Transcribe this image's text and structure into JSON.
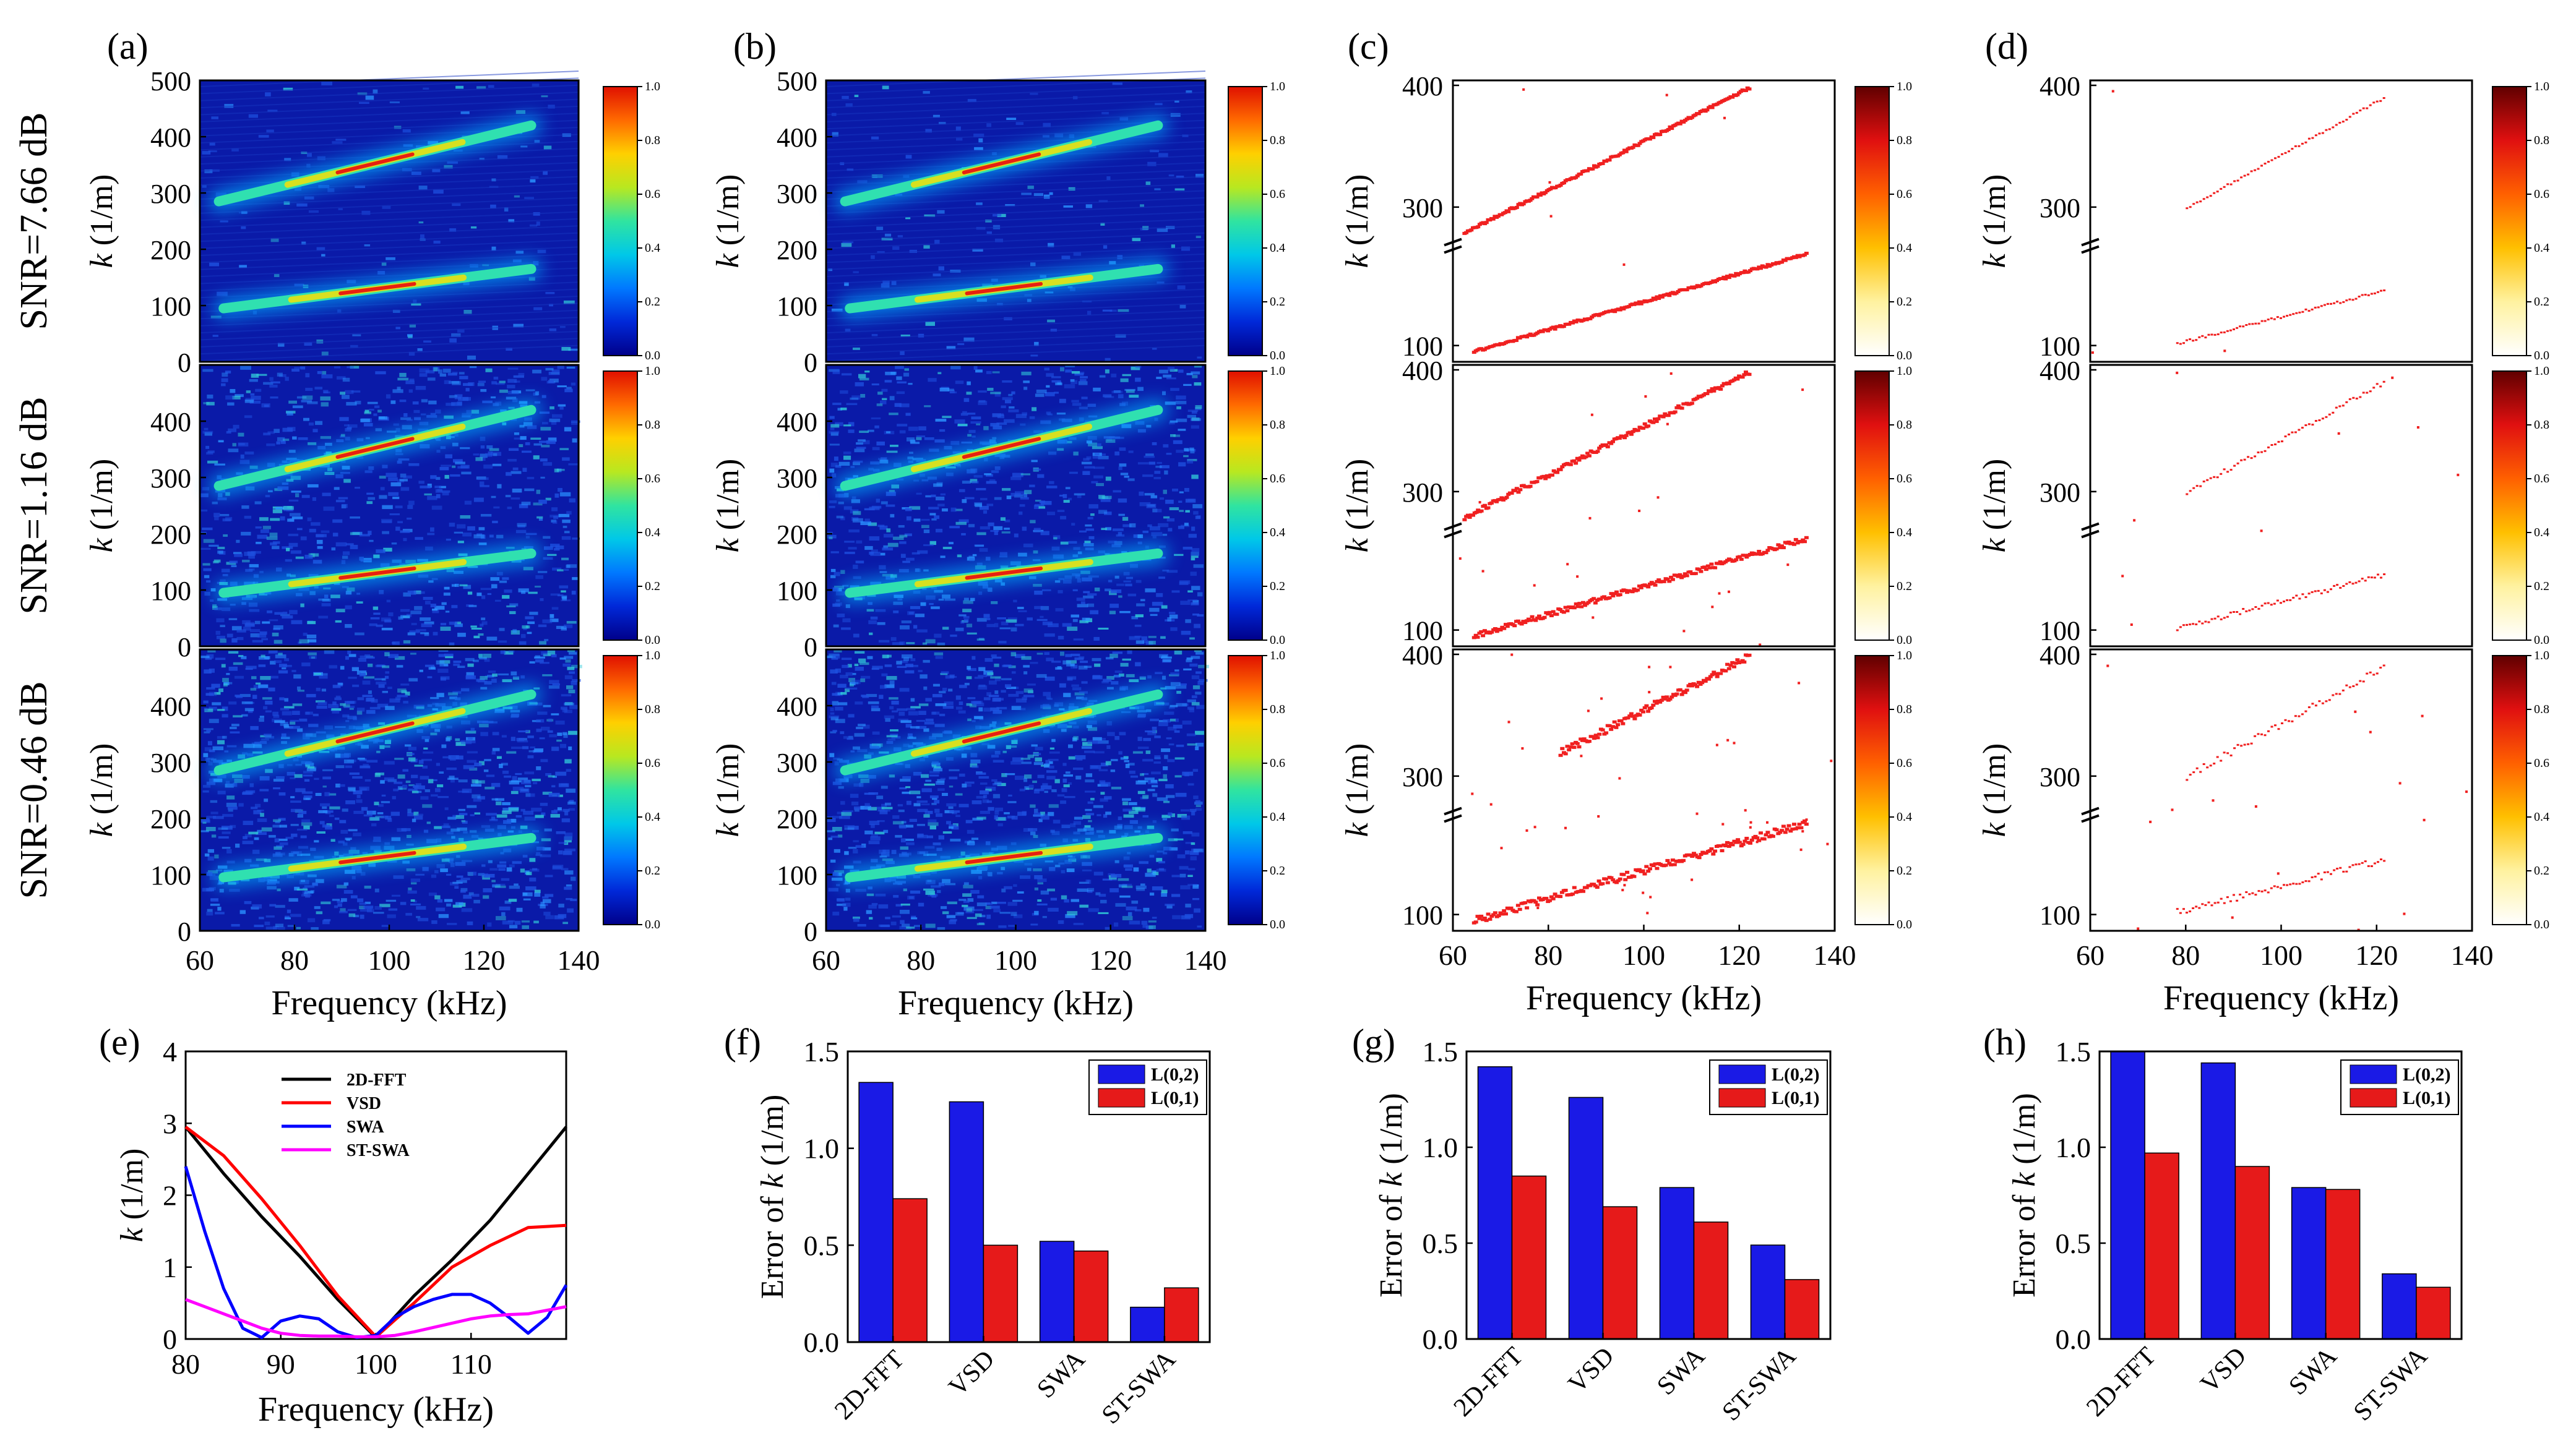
{
  "figure": {
    "colors": {
      "heat": [
        "#00008a",
        "#0028d8",
        "#0078ff",
        "#00c8e8",
        "#30e4a0",
        "#b8e820",
        "#ffd000",
        "#ff6a00",
        "#e01000"
      ],
      "sparse": [
        "#ffffff",
        "#fff2a0",
        "#ffc000",
        "#ff6000",
        "#e01010",
        "#600000"
      ],
      "ridge": "#f02020",
      "blue_bar": "#1a1ae6",
      "red_bar": "#e61a1a"
    }
  },
  "chart_data": [
    {
      "id": "maps",
      "type": "heatmap",
      "panels": [
        "(a)",
        "(b)",
        "(c)",
        "(d)"
      ],
      "row_labels": [
        "SNR=7.66 dB",
        "SNR=1.16 dB",
        "SNR=0.46 dB"
      ],
      "xlabel": "Frequency (kHz)",
      "xlim": [
        60,
        140
      ],
      "xticks": [
        "60",
        "80",
        "100",
        "120",
        "140"
      ],
      "ylabel_prefix": "k",
      "ylabel_suffix": " (1/m)",
      "dense_ylim": [
        0,
        500
      ],
      "dense_yticks_top": [
        "0",
        "100",
        "200",
        "300",
        "400",
        "500"
      ],
      "dense_yticks": [
        "0",
        "100",
        "200",
        "300",
        "400"
      ],
      "broken_yticks": [
        "100",
        "300",
        "400"
      ],
      "broken_ylim_low": [
        80,
        270
      ],
      "broken_ylim_high": [
        270,
        400
      ],
      "colorbar_ticks": [
        "0.0",
        "0.2",
        "0.4",
        "0.6",
        "0.8",
        "1.0"
      ],
      "modes": [
        {
          "name": "L(0,2)",
          "x": [
            64,
            130
          ],
          "y": [
            285,
            420
          ]
        },
        {
          "name": "L(0,1)",
          "x": [
            65,
            130
          ],
          "y": [
            95,
            165
          ]
        }
      ]
    },
    {
      "id": "e",
      "type": "line",
      "panel": "(e)",
      "xlabel": "Frequency (kHz)",
      "ylabel_prefix": "k",
      "ylabel_suffix": " (1/m)",
      "xlim": [
        80,
        120
      ],
      "ylim": [
        0,
        4
      ],
      "xticks": [
        "80",
        "90",
        "100",
        "110"
      ],
      "yticks": [
        "0",
        "1",
        "2",
        "3",
        "4"
      ],
      "series": [
        {
          "name": "2D-FFT",
          "color": "#000000",
          "x": [
            80,
            84,
            88,
            92,
            96,
            100,
            104,
            108,
            112,
            116,
            120
          ],
          "y": [
            2.95,
            2.3,
            1.7,
            1.15,
            0.55,
            0.02,
            0.6,
            1.1,
            1.65,
            2.3,
            2.95
          ]
        },
        {
          "name": "VSD",
          "color": "#ff0000",
          "x": [
            80,
            84,
            88,
            92,
            96,
            100,
            104,
            108,
            112,
            116,
            120
          ],
          "y": [
            2.95,
            2.55,
            1.95,
            1.3,
            0.6,
            0.03,
            0.5,
            1.0,
            1.3,
            1.55,
            1.58
          ]
        },
        {
          "name": "SWA",
          "color": "#0000ff",
          "x": [
            80,
            82,
            84,
            86,
            88,
            90,
            92,
            94,
            96,
            98,
            100,
            102,
            104,
            106,
            108,
            110,
            112,
            114,
            116,
            118,
            120
          ],
          "y": [
            2.4,
            1.5,
            0.7,
            0.15,
            0.02,
            0.25,
            0.32,
            0.28,
            0.1,
            0.02,
            0.05,
            0.3,
            0.45,
            0.55,
            0.62,
            0.62,
            0.5,
            0.3,
            0.08,
            0.3,
            0.75
          ]
        },
        {
          "name": "ST-SWA",
          "color": "#ff00ff",
          "x": [
            80,
            82,
            84,
            86,
            88,
            90,
            92,
            94,
            96,
            98,
            100,
            102,
            104,
            106,
            108,
            110,
            112,
            114,
            116,
            118,
            120
          ],
          "y": [
            0.55,
            0.45,
            0.35,
            0.25,
            0.15,
            0.08,
            0.05,
            0.04,
            0.04,
            0.03,
            0.03,
            0.05,
            0.1,
            0.16,
            0.22,
            0.28,
            0.32,
            0.34,
            0.35,
            0.4,
            0.45
          ]
        }
      ]
    },
    {
      "id": "f",
      "type": "bar",
      "panel": "(f)",
      "categories": [
        "2D-FFT",
        "VSD",
        "SWA",
        "ST-SWA"
      ],
      "series": [
        {
          "name": "L(0,2)",
          "values": [
            1.34,
            1.24,
            0.52,
            0.18
          ]
        },
        {
          "name": "L(0,1)",
          "values": [
            0.74,
            0.5,
            0.47,
            0.28
          ]
        }
      ],
      "ylabel": "Error of k (1/m)",
      "ylim": [
        0,
        1.5
      ],
      "yticks": [
        "0.0",
        "0.5",
        "1.0",
        "1.5"
      ]
    },
    {
      "id": "g",
      "type": "bar",
      "panel": "(g)",
      "categories": [
        "2D-FFT",
        "VSD",
        "SWA",
        "ST-SWA"
      ],
      "series": [
        {
          "name": "L(0,2)",
          "values": [
            1.42,
            1.26,
            0.79,
            0.49
          ]
        },
        {
          "name": "L(0,1)",
          "values": [
            0.85,
            0.69,
            0.61,
            0.31
          ]
        }
      ],
      "ylabel": "Error of k (1/m)",
      "ylim": [
        0,
        1.5
      ],
      "yticks": [
        "0.0",
        "0.5",
        "1.0",
        "1.5"
      ]
    },
    {
      "id": "h",
      "type": "bar",
      "panel": "(h)",
      "categories": [
        "2D-FFT",
        "VSD",
        "SWA",
        "ST-SWA"
      ],
      "series": [
        {
          "name": "L(0,2)",
          "values": [
            1.5,
            1.44,
            0.79,
            0.34
          ]
        },
        {
          "name": "L(0,1)",
          "values": [
            0.97,
            0.9,
            0.78,
            0.27
          ]
        }
      ],
      "ylabel": "Error of k (1/m)",
      "ylim": [
        0,
        1.5
      ],
      "yticks": [
        "0.0",
        "0.5",
        "1.0",
        "1.5"
      ]
    }
  ]
}
